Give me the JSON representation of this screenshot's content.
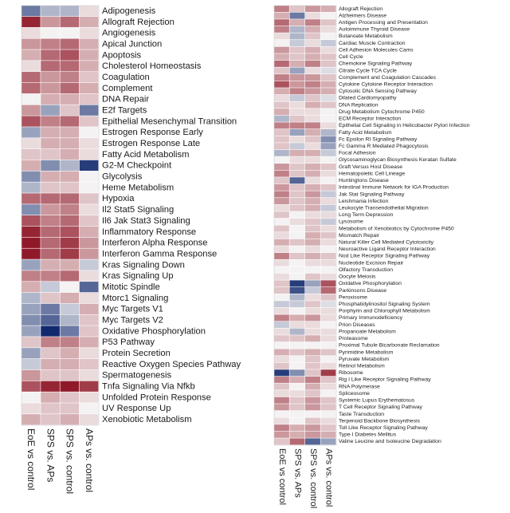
{
  "colors": {
    "high": "#8b0e1e",
    "mid": "#f4f2f2",
    "low": "#10296e"
  },
  "chart_data": [
    {
      "type": "heatmap",
      "columns": [
        "EoE vs control",
        "SPS vs. APs",
        "SPS vs. control",
        "APs vs. control"
      ],
      "rows": [
        "Adipogenesis",
        "Allograft Rejection",
        "Angiogenesis",
        "Apical Junction",
        "Apoptosis",
        "Cholesterol Homeostasis",
        "Coagulation",
        "Complement",
        "DNA Repair",
        "E2f Targets",
        "Epithelial Mesenchymal Transition",
        "Estrogen Response Early",
        "Estrogen Response Late",
        "Fatty Acid Metabolism",
        "G2-M Checkpoint",
        "Glycolysis",
        "Heme Metabolism",
        "Hypoxia",
        "Il2 Stat5 Signaling",
        "Il6 Jak Stat3 Signaling",
        "Inflammatory Response",
        "Interferon Alpha Response",
        "Interferon Gamma Response",
        "Kras Signaling Down",
        "Kras Signaling Up",
        "Mitotic Spindle",
        "Mtorc1 Signaling",
        "Myc Targets V1",
        "Myc Targets V2",
        "Oxidative Phosphorylation",
        "P53 Pathway",
        "Protein Secretion",
        "Reactive Oxygen Species Pathway",
        "Spermatogenesis",
        "Tnfa Signaling Via Nfkb",
        "Unfolded Protein Response",
        "UV Response Up",
        "Xenobiotic Metabolism"
      ],
      "values": [
        [
          -0.6,
          -0.3,
          -0.3,
          0.1
        ],
        [
          0.9,
          0.4,
          0.6,
          0.3
        ],
        [
          0.1,
          0.0,
          0.0,
          0.1
        ],
        [
          0.4,
          0.5,
          0.6,
          0.3
        ],
        [
          0.3,
          0.6,
          0.7,
          0.3
        ],
        [
          0.1,
          0.6,
          0.6,
          0.3
        ],
        [
          0.6,
          0.4,
          0.5,
          0.2
        ],
        [
          0.6,
          0.4,
          0.6,
          0.3
        ],
        [
          0.0,
          0.3,
          0.3,
          0.2
        ],
        [
          0.4,
          -0.4,
          0.2,
          -0.6
        ],
        [
          0.7,
          0.5,
          0.6,
          0.2
        ],
        [
          -0.4,
          0.3,
          0.3,
          0.0
        ],
        [
          0.1,
          0.3,
          0.3,
          0.1
        ],
        [
          0.2,
          0.2,
          0.3,
          0.1
        ],
        [
          0.3,
          -0.5,
          -0.3,
          -0.9
        ],
        [
          -0.5,
          0.3,
          0.3,
          0.0
        ],
        [
          -0.3,
          0.2,
          0.2,
          0.0
        ],
        [
          0.6,
          0.6,
          0.6,
          0.2
        ],
        [
          -0.5,
          0.4,
          0.5,
          0.1
        ],
        [
          0.7,
          0.5,
          0.6,
          0.2
        ],
        [
          0.9,
          0.6,
          0.7,
          0.3
        ],
        [
          0.95,
          0.6,
          0.8,
          0.4
        ],
        [
          0.95,
          0.6,
          0.8,
          0.4
        ],
        [
          -0.4,
          0.3,
          0.3,
          -0.2
        ],
        [
          0.5,
          0.5,
          0.6,
          0.1
        ],
        [
          0.3,
          -0.2,
          0.0,
          -0.7
        ],
        [
          -0.3,
          0.2,
          0.3,
          0.1
        ],
        [
          -0.4,
          -0.6,
          -0.2,
          0.3
        ],
        [
          -0.5,
          -0.7,
          -0.3,
          0.2
        ],
        [
          -0.4,
          -1.0,
          -0.6,
          0.2
        ],
        [
          0.2,
          0.5,
          0.5,
          0.3
        ],
        [
          -0.4,
          0.2,
          0.3,
          0.1
        ],
        [
          -0.2,
          0.3,
          0.3,
          0.2
        ],
        [
          0.4,
          0.2,
          0.2,
          0.1
        ],
        [
          0.7,
          0.9,
          0.95,
          0.8
        ],
        [
          0.0,
          0.3,
          0.2,
          0.1
        ],
        [
          0.1,
          0.2,
          0.2,
          0.0
        ],
        [
          0.3,
          0.2,
          0.3,
          0.1
        ]
      ]
    },
    {
      "type": "heatmap",
      "columns": [
        "EoE vs control",
        "SPS vs. APs",
        "SPS vs. control",
        "APs vs. control"
      ],
      "rows": [
        "Allograft Rejection",
        "Alzheimers Disease",
        "Antigen Processing and Presentation",
        "Autoimmune Thyroid Disease",
        "Butanoate Metabolism",
        "Cardiac Muscle Contraction",
        "Cell Adhesion Molecules Cams",
        "Cell Cycle",
        "Chemokine Signaling Pathway",
        "Citrate Cycle TCA Cycle",
        "Complement and Coagulation Cascades",
        "Cytokine Cytokine Receptor Interaction",
        "Cytosolic DNA Sensing Pathway",
        "Dilated Cardiomyopathy",
        "DNA Replication",
        "Drug Metabolism Cytochrome P450",
        "ECM Receptor Interaction",
        "Epithelial Cell Signaling in Helicobacter Pylori Infection",
        "Fatty Acid Metabolism",
        "Fc Epsilon RI Signaling Pathway",
        "Fc Gamma R Mediated Phagocytosis",
        "Focal Adhesion",
        "Glycosaminoglycan Biosynthesis Keratan Sulfate",
        "Graft Versus Host Disease",
        "Hematopoietic Cell Lineage",
        "Huntingtons Disease",
        "Intestinal Immune Network for IGA Production",
        "Jak Stat Signaling Pathway",
        "Leishmania Infection",
        "Leukocyte Transendothelial Migration",
        "Long Term Depression",
        "Lysosome",
        "Metabolism of Xenobiotics by Cytochrome P450",
        "Mismatch Repair",
        "Natural Killer Cell Mediated Cytotoxicity",
        "Neuroactive Ligand Receptor Interaction",
        "Nod Like Receptor Signaling Pathway",
        "Nucleotide Excision Repair",
        "Olfactory Transduction",
        "Oocyte Meiosis",
        "Oxidative Phosphorylation",
        "Parkinsons Disease",
        "Peroxisome",
        "Phosphatidylinositol Signaling System",
        "Porphyrin and Chlorophyll Metabolism",
        "Primary Immunodeficiency",
        "Prion Diseases",
        "Propanoate Metabolism",
        "Proteasome",
        "Proximal Tubule Bicarbonate Reclamation",
        "Pyrimidine Metabolism",
        "Pyruvate Metabolism",
        "Retinol Metabolism",
        "Ribosome",
        "Rig I Like Receptor Signaling Pathway",
        "RNA Polymerase",
        "Spliceosome",
        "Systemic Lupus Erythematosus",
        "T Cell Receptor Signaling Pathway",
        "Taste Transduction",
        "Terpenoid Backbone Biosynthesis",
        "Toll Like Receptor Signaling Pathway",
        "Type I Diabetes Mellitus",
        "Valine Leucine and Isoleucine Degradation"
      ],
      "values": [
        [
          0.5,
          0.2,
          0.4,
          0.3
        ],
        [
          0.3,
          -0.6,
          0.1,
          0.0
        ],
        [
          0.6,
          0.3,
          0.5,
          0.2
        ],
        [
          0.5,
          -0.3,
          0.3,
          0.1
        ],
        [
          0.1,
          -0.3,
          0.2,
          0.0
        ],
        [
          0.0,
          -0.2,
          0.1,
          -0.2
        ],
        [
          0.4,
          0.2,
          0.3,
          0.1
        ],
        [
          0.3,
          0.2,
          0.3,
          0.2
        ],
        [
          0.6,
          0.3,
          0.5,
          0.2
        ],
        [
          0.2,
          -0.4,
          0.1,
          -0.1
        ],
        [
          0.5,
          0.4,
          0.4,
          0.2
        ],
        [
          0.7,
          0.4,
          0.5,
          0.3
        ],
        [
          0.3,
          0.5,
          0.4,
          0.3
        ],
        [
          0.1,
          -0.2,
          0.2,
          -0.1
        ],
        [
          0.2,
          0.1,
          0.3,
          0.2
        ],
        [
          0.3,
          0.1,
          0.1,
          0.0
        ],
        [
          -0.3,
          0.2,
          0.1,
          0.0
        ],
        [
          0.5,
          0.5,
          0.5,
          0.1
        ],
        [
          0.2,
          -0.4,
          0.3,
          -0.3
        ],
        [
          0.2,
          0.1,
          0.2,
          -0.5
        ],
        [
          0.2,
          -0.2,
          0.1,
          -0.4
        ],
        [
          -0.3,
          0.3,
          0.3,
          -0.2
        ],
        [
          0.0,
          0.1,
          0.1,
          0.0
        ],
        [
          0.4,
          0.2,
          0.3,
          0.2
        ],
        [
          0.5,
          0.2,
          0.3,
          0.1
        ],
        [
          0.2,
          -0.7,
          0.1,
          0.0
        ],
        [
          0.4,
          0.2,
          0.3,
          0.2
        ],
        [
          0.5,
          0.2,
          0.4,
          -0.2
        ],
        [
          0.4,
          0.2,
          0.3,
          0.1
        ],
        [
          0.1,
          0.2,
          0.3,
          -0.2
        ],
        [
          0.2,
          0.0,
          0.1,
          0.1
        ],
        [
          0.0,
          0.1,
          0.2,
          -0.2
        ],
        [
          0.2,
          0.0,
          0.2,
          0.1
        ],
        [
          0.1,
          0.0,
          0.3,
          0.2
        ],
        [
          0.3,
          0.2,
          0.3,
          0.1
        ],
        [
          0.1,
          0.0,
          0.1,
          0.0
        ],
        [
          0.5,
          0.2,
          0.3,
          0.2
        ],
        [
          0.1,
          0.0,
          0.1,
          0.1
        ],
        [
          0.0,
          0.0,
          0.0,
          0.0
        ],
        [
          0.1,
          0.0,
          0.2,
          0.1
        ],
        [
          0.2,
          -0.9,
          -0.4,
          0.7
        ],
        [
          0.2,
          -0.8,
          -0.2,
          0.6
        ],
        [
          0.0,
          -0.3,
          0.1,
          0.2
        ],
        [
          -0.2,
          -0.2,
          0.2,
          -0.1
        ],
        [
          0.1,
          0.0,
          0.1,
          0.1
        ],
        [
          0.5,
          0.3,
          0.4,
          0.1
        ],
        [
          -0.2,
          0.1,
          0.1,
          0.0
        ],
        [
          0.1,
          -0.3,
          0.1,
          0.1
        ],
        [
          0.2,
          0.2,
          0.3,
          0.1
        ],
        [
          0.0,
          0.0,
          0.0,
          0.0
        ],
        [
          0.3,
          0.2,
          0.3,
          0.2
        ],
        [
          0.1,
          0.0,
          0.2,
          0.0
        ],
        [
          0.2,
          0.0,
          0.2,
          0.1
        ],
        [
          -0.9,
          -0.5,
          0.2,
          0.8
        ],
        [
          0.5,
          0.3,
          0.5,
          0.2
        ],
        [
          0.2,
          0.0,
          0.3,
          0.1
        ],
        [
          0.1,
          0.1,
          0.2,
          0.0
        ],
        [
          0.5,
          0.2,
          0.4,
          0.2
        ],
        [
          0.4,
          0.2,
          0.4,
          0.2
        ],
        [
          0.0,
          0.0,
          0.0,
          0.0
        ],
        [
          0.1,
          0.0,
          0.2,
          0.1
        ],
        [
          0.5,
          0.3,
          0.4,
          0.2
        ],
        [
          0.4,
          0.3,
          0.4,
          0.3
        ],
        [
          0.2,
          0.6,
          -0.7,
          -0.4
        ]
      ]
    }
  ]
}
